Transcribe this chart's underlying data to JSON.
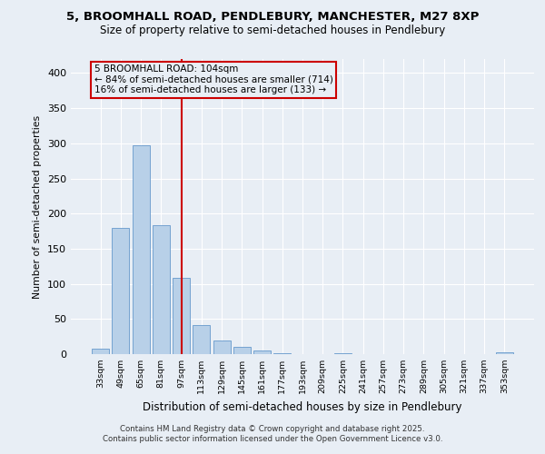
{
  "title1": "5, BROOMHALL ROAD, PENDLEBURY, MANCHESTER, M27 8XP",
  "title2": "Size of property relative to semi-detached houses in Pendlebury",
  "xlabel": "Distribution of semi-detached houses by size in Pendlebury",
  "ylabel": "Number of semi-detached properties",
  "bar_labels": [
    "33sqm",
    "49sqm",
    "65sqm",
    "81sqm",
    "97sqm",
    "113sqm",
    "129sqm",
    "145sqm",
    "161sqm",
    "177sqm",
    "193sqm",
    "209sqm",
    "225sqm",
    "241sqm",
    "257sqm",
    "273sqm",
    "289sqm",
    "305sqm",
    "321sqm",
    "337sqm",
    "353sqm"
  ],
  "bar_values": [
    8,
    180,
    297,
    184,
    108,
    42,
    20,
    10,
    5,
    1,
    0,
    0,
    1,
    0,
    0,
    0,
    0,
    0,
    0,
    0,
    3
  ],
  "bar_color": "#b8d0e8",
  "bar_edge_color": "#6699cc",
  "vline_x_index": 4.0,
  "annotation_text": "5 BROOMHALL ROAD: 104sqm\n← 84% of semi-detached houses are smaller (714)\n16% of semi-detached houses are larger (133) →",
  "vline_color": "#cc0000",
  "box_edge_color": "#cc0000",
  "background_color": "#e8eef5",
  "ylim": [
    0,
    420
  ],
  "yticks": [
    0,
    50,
    100,
    150,
    200,
    250,
    300,
    350,
    400
  ],
  "footer1": "Contains HM Land Registry data © Crown copyright and database right 2025.",
  "footer2": "Contains public sector information licensed under the Open Government Licence v3.0."
}
